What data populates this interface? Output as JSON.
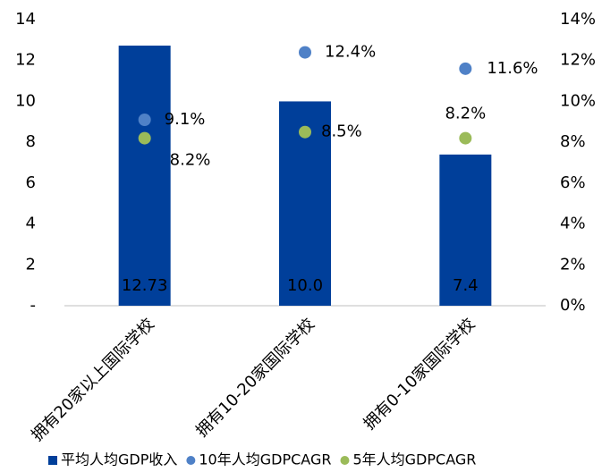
{
  "chart_data": {
    "type": "bar",
    "categories": [
      "拥有20家以上国际学校",
      "拥有10-20家国际学校",
      "拥有0-10家国际学校"
    ],
    "series": [
      {
        "name": "平均人均GDP收入",
        "color": "#003f9a",
        "values": [
          12.73,
          10.0,
          7.4
        ],
        "value_labels": [
          "12.73",
          "10.0",
          "7.4"
        ]
      },
      {
        "name": "10年人均GDPCAGR",
        "color": "#4f81c7",
        "axis": "y2",
        "marker": "circle",
        "values": [
          9.1,
          12.4,
          11.6
        ],
        "value_labels": [
          "9.1%",
          "12.4%",
          "11.6%"
        ]
      },
      {
        "name": "5年人均GDPCAGR",
        "color": "#9bbb59",
        "axis": "y2",
        "marker": "circle",
        "values": [
          8.2,
          8.5,
          8.2
        ],
        "value_labels": [
          "8.2%",
          "8.5%",
          "8.2%"
        ]
      }
    ],
    "ylim": [
      0,
      14
    ],
    "yticks": [
      {
        "value": 0,
        "label": "-"
      },
      2,
      4,
      6,
      8,
      10,
      12,
      14
    ],
    "y2lim": [
      0,
      14
    ],
    "y2ticks": [
      {
        "value": 0,
        "label": "0%"
      },
      {
        "value": 2,
        "label": "2%"
      },
      {
        "value": 4,
        "label": "4%"
      },
      {
        "value": 6,
        "label": "6%"
      },
      {
        "value": 8,
        "label": "8%"
      },
      {
        "value": 10,
        "label": "10%"
      },
      {
        "value": 12,
        "label": "12%"
      },
      {
        "value": 14,
        "label": "14%"
      }
    ],
    "legend": "bottom"
  }
}
